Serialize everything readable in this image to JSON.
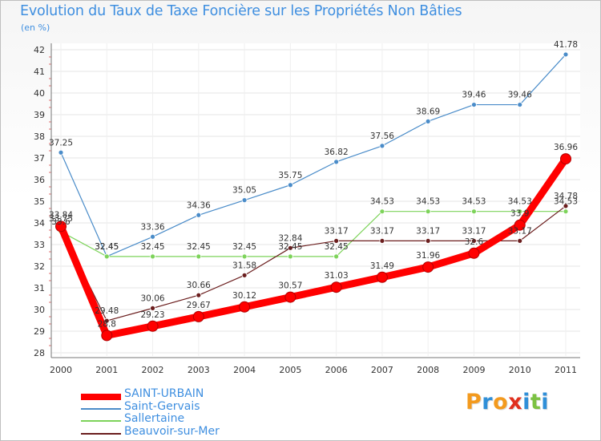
{
  "chart_data": {
    "type": "line",
    "title": "Evolution du Taux de Taxe Foncière sur les Propriétés Non Bâties",
    "subtitle": "(en %)",
    "xlabel": "",
    "ylabel": "(en %)",
    "categories": [
      "2000",
      "2001",
      "2002",
      "2003",
      "2004",
      "2005",
      "2006",
      "2007",
      "2008",
      "2009",
      "2010",
      "2011"
    ],
    "ylim": [
      28,
      42
    ],
    "yticks": [
      "28",
      "29",
      "30",
      "31",
      "32",
      "33",
      "34",
      "35",
      "36",
      "37",
      "38",
      "39",
      "40",
      "41",
      "42"
    ],
    "grid": true,
    "legend_position": "bottom-left",
    "series": [
      {
        "name": "SAINT-URBAIN",
        "color": "#ff0000",
        "values": [
          33.84,
          28.8,
          29.23,
          29.67,
          30.12,
          30.57,
          31.03,
          31.49,
          31.96,
          32.6,
          33.9,
          36.96
        ],
        "labels": [
          "33.84",
          "28.8",
          "29.23",
          "29.67",
          "30.12",
          "30.57",
          "31.03",
          "31.49",
          "31.96",
          "32.6",
          "33.9",
          "36.96"
        ]
      },
      {
        "name": "Saint-Gervais",
        "color": "#4a8cc9",
        "values": [
          37.25,
          32.45,
          33.36,
          34.36,
          35.05,
          35.75,
          36.82,
          37.56,
          38.69,
          39.46,
          39.46,
          41.78
        ],
        "labels": [
          "37.25",
          "32.45",
          "33.36",
          "34.36",
          "35.05",
          "35.75",
          "36.82",
          "37.56",
          "38.69",
          "39.46",
          "39.46",
          "41.78"
        ]
      },
      {
        "name": "Sallertaine",
        "color": "#7dd35a",
        "values": [
          33.6,
          32.45,
          32.45,
          32.45,
          32.45,
          32.45,
          32.45,
          34.53,
          34.53,
          34.53,
          34.53,
          34.53
        ],
        "labels": [
          "33.6",
          "32.45",
          "32.45",
          "32.45",
          "32.45",
          "32.45",
          "32.45",
          "34.53",
          "34.53",
          "34.53",
          "34.53",
          "34.53"
        ]
      },
      {
        "name": "Beauvoir-sur-Mer",
        "color": "#6b1e1e",
        "values": [
          33.75,
          29.48,
          30.06,
          30.66,
          31.58,
          32.84,
          33.17,
          33.17,
          33.17,
          33.17,
          33.17,
          34.78
        ],
        "labels": [
          "33.75",
          "29.48",
          "30.06",
          "30.66",
          "31.58",
          "32.84",
          "33.17",
          "33.17",
          "33.17",
          "33.17",
          "33.17",
          "34.78"
        ]
      }
    ]
  },
  "legend": {
    "items": [
      {
        "label": "SAINT-URBAIN",
        "color": "#ff0000"
      },
      {
        "label": "Saint-Gervais",
        "color": "#4a8cc9"
      },
      {
        "label": "Sallertaine",
        "color": "#7dd35a"
      },
      {
        "label": "Beauvoir-sur-Mer",
        "color": "#6b1e1e"
      }
    ]
  },
  "logo": {
    "text": "Proxiti",
    "colors": [
      "#f39a1e",
      "#2f8fd8",
      "#f39a1e",
      "#e0301e",
      "#2f8fd8",
      "#7cc243",
      "#2f8fd8"
    ]
  }
}
